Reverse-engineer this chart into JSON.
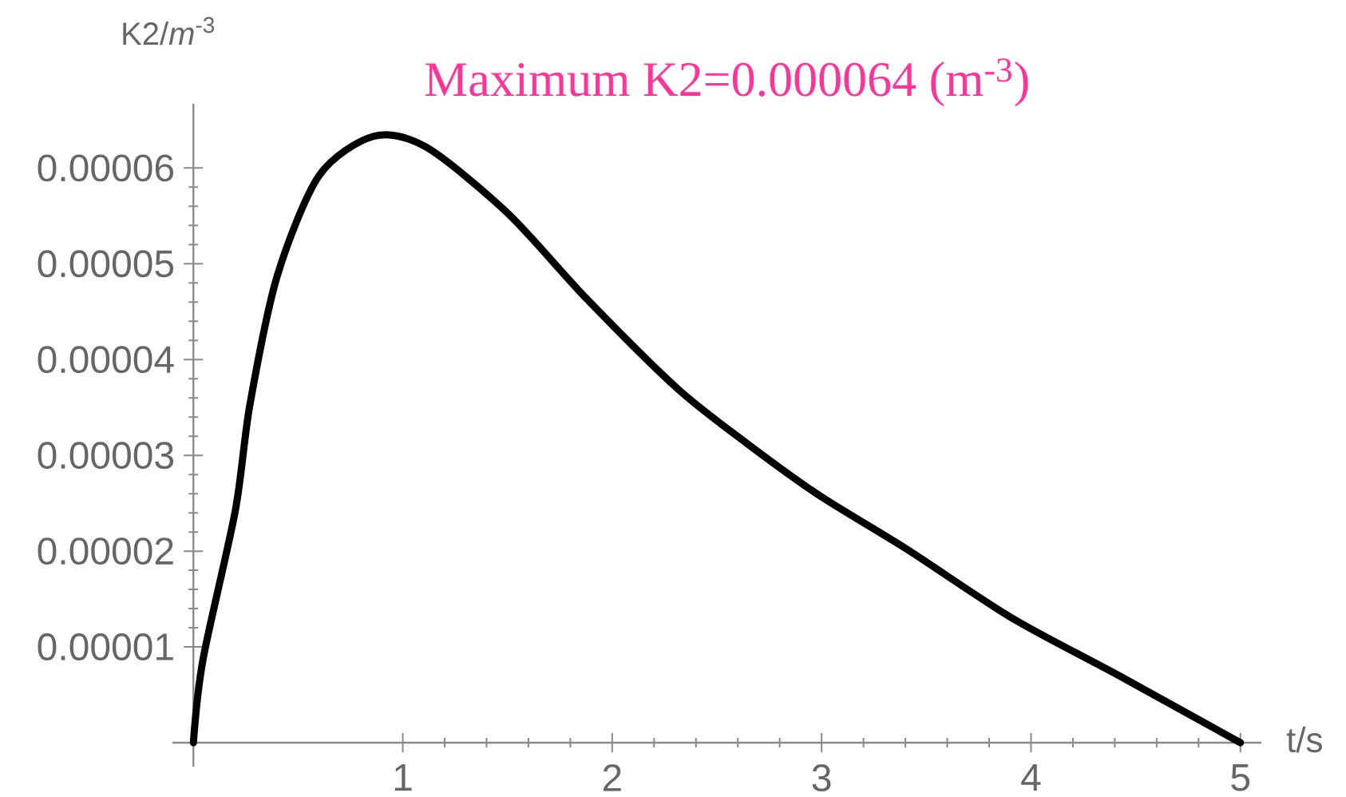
{
  "chart_data": {
    "type": "line",
    "xlabel": "t/s",
    "ylabel": "K2/*m*$^{-3}$",
    "annotations": [
      "Maximum K2=0.000064 (m$^{-3}$)"
    ],
    "x": [
      0,
      0.046,
      0.2,
      0.27,
      0.4,
      0.6,
      0.86,
      1.11,
      1.5,
      1.88,
      2.31,
      2.64,
      2.99,
      3.4,
      3.91,
      4.42,
      5
    ],
    "series": [
      {
        "color": "#000000",
        "line_style": "solid",
        "values": [
          0,
          8.7e-06,
          2.42e-05,
          3.53e-05,
          4.87e-05,
          5.92e-05,
          6.33e-05,
          6.22e-05,
          5.53e-05,
          4.63e-05,
          3.7e-05,
          3.13e-05,
          2.58e-05,
          2.03e-05,
          1.3e-05,
          7e-06,
          0
        ]
      }
    ],
    "xlim": [
      -0.1,
      5.1
    ],
    "ylim": [
      -2.5e-06,
      6.67e-05
    ],
    "xticks": [
      1,
      2,
      3,
      4,
      5
    ],
    "yticks": [
      {
        "value": 1e-05,
        "label": "0.00001"
      },
      {
        "value": 2e-05,
        "label": "0.00002"
      },
      {
        "value": 3e-05,
        "label": "0.00003"
      },
      {
        "value": 4e-05,
        "label": "0.00004"
      },
      {
        "value": 5e-05,
        "label": "0.00005"
      },
      {
        "value": 6e-05,
        "label": "0.00006"
      }
    ]
  }
}
